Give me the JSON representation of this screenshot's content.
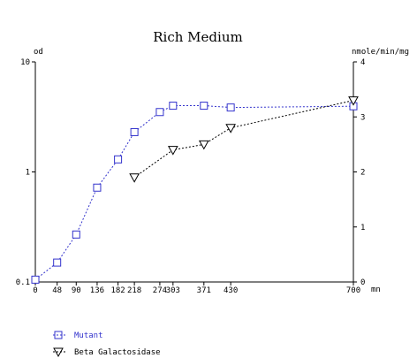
{
  "chart_data": {
    "type": "line",
    "title": "Rich Medium",
    "x_unit": "mn",
    "left_axis_label": "od",
    "right_axis_label": "nmole/min/mg",
    "x_ticks": [
      0,
      48,
      90,
      136,
      182,
      218,
      274,
      303,
      371,
      430,
      700
    ],
    "xlim": [
      0,
      700
    ],
    "y_left_scale": "log",
    "y_left_ticks": [
      "0.1",
      "1",
      "10"
    ],
    "y_left_lim": [
      0.1,
      10
    ],
    "y_right_ticks": [
      "0",
      "1",
      "2",
      "3",
      "4"
    ],
    "y_right_lim": [
      0,
      4
    ],
    "grid": false,
    "legend_position": "bottom-left",
    "series": [
      {
        "name": "Mutant",
        "axis": "left",
        "marker": "square",
        "color": "#3333cc",
        "x": [
          0,
          48,
          90,
          136,
          182,
          218,
          274,
          303,
          371,
          430,
          700
        ],
        "y": [
          0.105,
          0.15,
          0.27,
          0.72,
          1.3,
          2.3,
          3.5,
          4.0,
          4.0,
          3.85,
          3.95
        ]
      },
      {
        "name": "Beta Galactosidase",
        "axis": "right",
        "marker": "triangle",
        "color": "#000000",
        "x": [
          218,
          303,
          371,
          430,
          700
        ],
        "y": [
          1.9,
          2.4,
          2.5,
          2.8,
          3.3
        ]
      }
    ]
  }
}
